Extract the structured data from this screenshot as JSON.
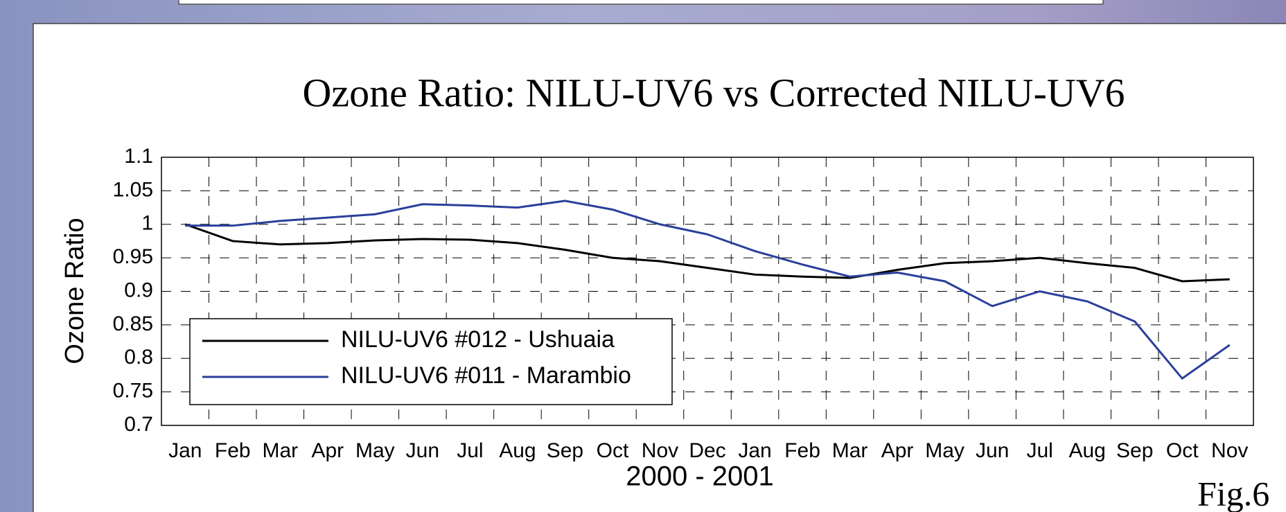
{
  "chart_data": {
    "type": "line",
    "title": "Ozone Ratio: NILU-UV6 vs Corrected NILU-UV6",
    "y_label": "Ozone Ratio",
    "x_label": "2000 - 2001",
    "annotation": "Fig.6",
    "categories": [
      "Jan",
      "Feb",
      "Mar",
      "Apr",
      "May",
      "Jun",
      "Jul",
      "Aug",
      "Sep",
      "Oct",
      "Nov",
      "Dec",
      "Jan",
      "Feb",
      "Mar",
      "Apr",
      "May",
      "Jun",
      "Jul",
      "Aug",
      "Sep",
      "Oct",
      "Nov"
    ],
    "series": [
      {
        "name": "NILU-UV6 #012 - Ushuaia",
        "color": "#000000",
        "values": [
          1.0,
          0.975,
          0.97,
          0.972,
          0.976,
          0.978,
          0.977,
          0.972,
          0.962,
          0.95,
          0.945,
          0.935,
          0.925,
          0.922,
          0.92,
          0.932,
          0.942,
          0.945,
          0.95,
          0.942,
          0.935,
          0.915,
          0.918
        ]
      },
      {
        "name": "NILU-UV6 #011 - Marambio",
        "color": "#2a3f9a",
        "values": [
          0.998,
          0.998,
          1.005,
          1.01,
          1.015,
          1.03,
          1.028,
          1.025,
          1.035,
          1.022,
          1.0,
          0.985,
          0.96,
          0.94,
          0.922,
          0.928,
          0.915,
          0.878,
          0.9,
          0.885,
          0.855,
          0.77,
          0.82
        ]
      }
    ],
    "ylim": [
      0.7,
      1.1
    ],
    "yticks": [
      0.7,
      0.75,
      0.8,
      0.85,
      0.9,
      0.95,
      1,
      1.05,
      1.1
    ],
    "grid": true,
    "legend": "lower left"
  }
}
